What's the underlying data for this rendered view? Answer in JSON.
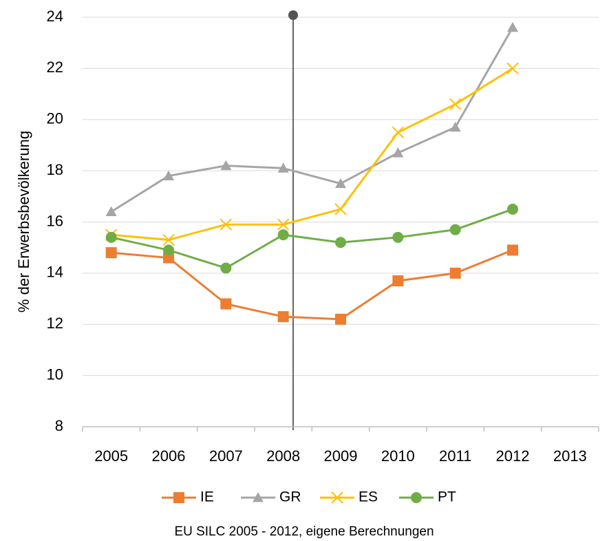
{
  "chart_data": {
    "type": "line",
    "ylabel": "% der Erwerbsbevölkerung",
    "note": "EU SILC 2005 - 2012, eigene Berechnungen",
    "categories": [
      "2005",
      "2006",
      "2007",
      "2008",
      "2009",
      "2010",
      "2011",
      "2012",
      "2013"
    ],
    "series": [
      {
        "name": "IE",
        "color": "#ed7d31",
        "marker": "square",
        "values": [
          14.8,
          14.6,
          12.8,
          12.3,
          12.2,
          13.7,
          14.0,
          14.9,
          null
        ]
      },
      {
        "name": "GR",
        "color": "#a5a5a5",
        "marker": "triangle",
        "values": [
          16.4,
          17.8,
          18.2,
          18.1,
          17.5,
          18.7,
          19.7,
          23.6,
          null
        ]
      },
      {
        "name": "ES",
        "color": "#ffc000",
        "marker": "x",
        "values": [
          15.5,
          15.3,
          15.9,
          15.9,
          16.5,
          19.5,
          20.6,
          22.0,
          null
        ]
      },
      {
        "name": "PT",
        "color": "#70ad47",
        "marker": "circle",
        "values": [
          15.4,
          14.9,
          14.2,
          15.5,
          15.2,
          15.4,
          15.7,
          16.5,
          null
        ]
      }
    ],
    "ylim": [
      8,
      24
    ],
    "yticks": [
      8,
      10,
      12,
      14,
      16,
      18,
      20,
      22,
      24
    ],
    "grid": true,
    "legend": "bottom"
  }
}
